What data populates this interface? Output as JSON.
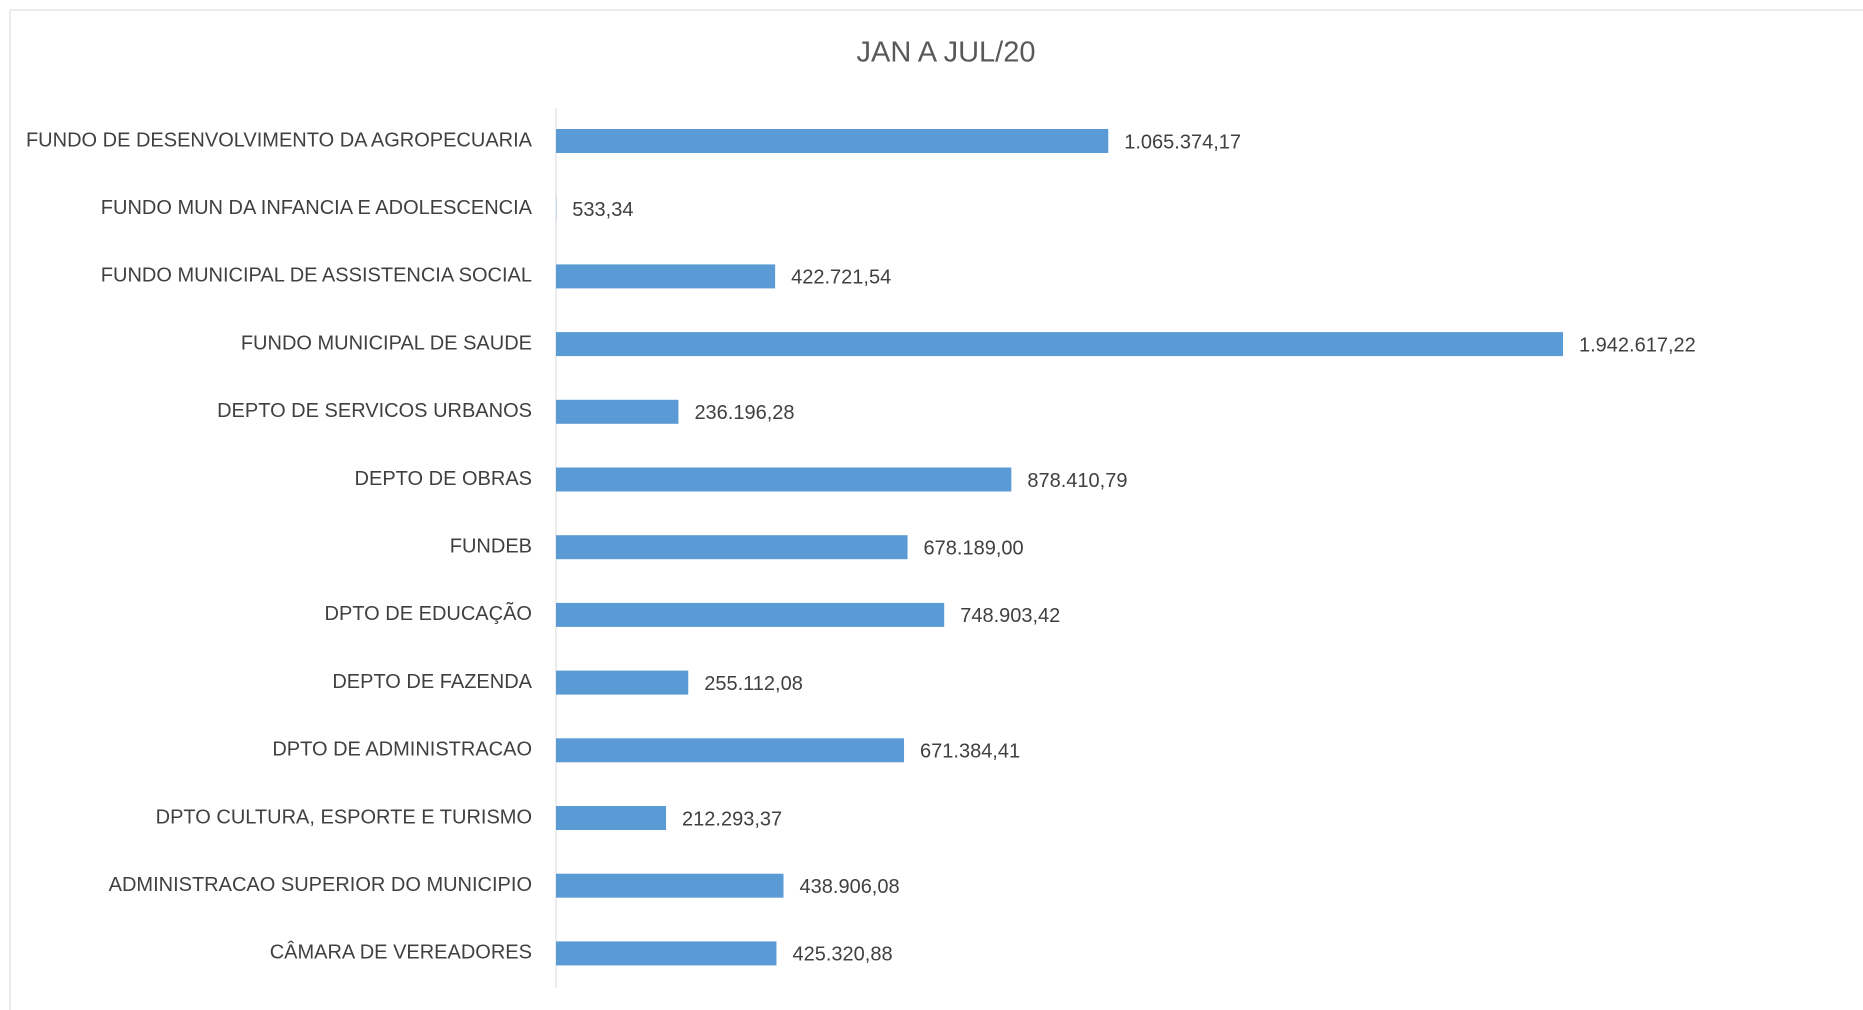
{
  "chart_data": {
    "type": "bar",
    "orientation": "horizontal",
    "title": "JAN A JUL/20",
    "categories": [
      "FUNDO DE DESENVOLVIMENTO DA AGROPECUARIA",
      "FUNDO MUN DA INFANCIA E ADOLESCENCIA",
      "FUNDO MUNICIPAL DE ASSISTENCIA SOCIAL",
      "FUNDO MUNICIPAL DE SAUDE",
      "DEPTO DE SERVICOS URBANOS",
      "DEPTO DE OBRAS",
      "FUNDEB",
      "DPTO DE EDUCAÇÃO",
      "DEPTO DE FAZENDA",
      "DPTO DE ADMINISTRACAO",
      "DPTO CULTURA, ESPORTE E TURISMO",
      "ADMINISTRACAO SUPERIOR DO MUNICIPIO",
      "CÂMARA DE VEREADORES"
    ],
    "values": [
      1065374.17,
      533.34,
      422721.54,
      1942617.22,
      236196.28,
      878410.79,
      678189.0,
      748903.42,
      255112.08,
      671384.41,
      212293.37,
      438906.08,
      425320.88
    ],
    "value_labels": [
      "1.065.374,17",
      "533,34",
      "422.721,54",
      "1.942.617,22",
      "236.196,28",
      "878.410,79",
      "678.189,00",
      "748.903,42",
      "255.112,08",
      "671.384,41",
      "212.293,37",
      "438.906,08",
      "425.320,88"
    ],
    "color": "#5b9bd5"
  }
}
